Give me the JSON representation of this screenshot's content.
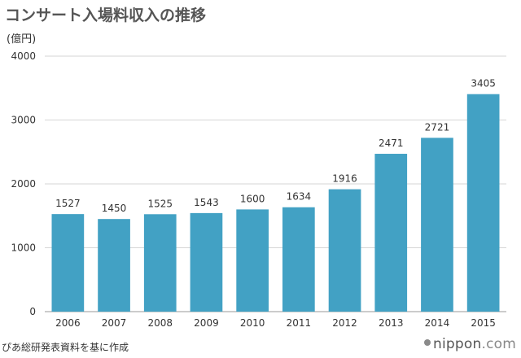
{
  "title": "コンサート入場料収入の推移",
  "source": "ぴあ総研発表資料を基に作成",
  "logo": {
    "name": "nippon",
    "tld": ".com"
  },
  "chart_data": {
    "type": "bar",
    "title": "コンサート入場料収入の推移",
    "ylabel": "(億円)",
    "xlabel": "",
    "ylim": [
      0,
      4000
    ],
    "yticks": [
      0,
      1000,
      2000,
      3000,
      4000
    ],
    "grid": true,
    "bar_color": "#42a1c4",
    "categories": [
      "2006",
      "2007",
      "2008",
      "2009",
      "2010",
      "2011",
      "2012",
      "2013",
      "2014",
      "2015"
    ],
    "values": [
      1527,
      1450,
      1525,
      1543,
      1600,
      1634,
      1916,
      2471,
      2721,
      3405
    ]
  }
}
